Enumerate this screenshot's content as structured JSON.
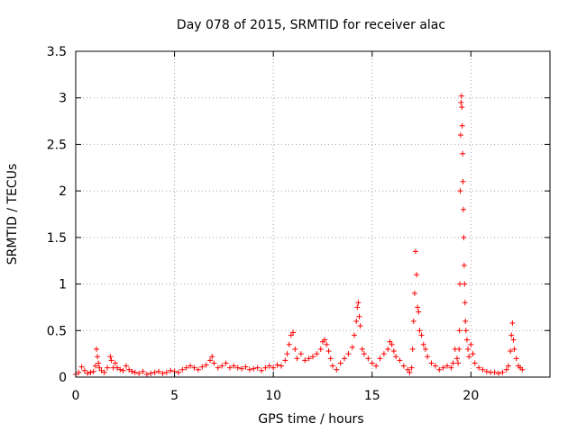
{
  "chart_data": {
    "type": "scatter",
    "title": "Day 078 of 2015, SRMTID for receiver alac",
    "xlabel": "GPS time / hours",
    "ylabel": "SRMTID / TECUs",
    "xlim": [
      0,
      24
    ],
    "ylim": [
      0,
      3.5
    ],
    "x_ticks": [
      0,
      5,
      10,
      15,
      20
    ],
    "x_tick_labels": [
      "0",
      "5",
      "10",
      "15",
      "20"
    ],
    "y_ticks": [
      0,
      0.5,
      1,
      1.5,
      2,
      2.5,
      3,
      3.5
    ],
    "y_tick_labels": [
      "0",
      "0.5",
      "1",
      "1.5",
      "2",
      "2.5",
      "3",
      "3.5"
    ],
    "grid": true,
    "marker": "+",
    "color": "#ff0000",
    "series": [
      {
        "name": "SRMTID",
        "x": [
          0.0,
          0.15,
          0.3,
          0.45,
          0.6,
          0.75,
          0.9,
          1.0,
          1.05,
          1.1,
          1.15,
          1.2,
          1.3,
          1.45,
          1.6,
          1.75,
          1.8,
          1.9,
          2.0,
          2.1,
          2.25,
          2.4,
          2.55,
          2.7,
          2.85,
          3.0,
          3.2,
          3.4,
          3.6,
          3.8,
          4.0,
          4.2,
          4.4,
          4.6,
          4.8,
          5.0,
          5.2,
          5.4,
          5.6,
          5.8,
          6.0,
          6.2,
          6.4,
          6.6,
          6.8,
          6.9,
          7.0,
          7.2,
          7.4,
          7.6,
          7.8,
          8.0,
          8.2,
          8.4,
          8.6,
          8.8,
          9.0,
          9.2,
          9.4,
          9.6,
          9.8,
          10.0,
          10.2,
          10.4,
          10.6,
          10.7,
          10.8,
          10.9,
          11.0,
          11.1,
          11.2,
          11.4,
          11.6,
          11.8,
          12.0,
          12.2,
          12.4,
          12.5,
          12.6,
          12.7,
          12.8,
          12.9,
          13.0,
          13.2,
          13.4,
          13.6,
          13.8,
          14.0,
          14.1,
          14.2,
          14.25,
          14.3,
          14.35,
          14.4,
          14.5,
          14.6,
          14.8,
          15.0,
          15.2,
          15.4,
          15.6,
          15.8,
          15.9,
          16.0,
          16.1,
          16.2,
          16.4,
          16.6,
          16.8,
          16.9,
          17.0,
          17.05,
          17.1,
          17.15,
          17.2,
          17.25,
          17.3,
          17.35,
          17.4,
          17.5,
          17.6,
          17.7,
          17.8,
          18.0,
          18.2,
          18.4,
          18.6,
          18.8,
          19.0,
          19.1,
          19.2,
          19.3,
          19.35,
          19.4,
          19.42,
          19.44,
          19.46,
          19.48,
          19.5,
          19.52,
          19.54,
          19.56,
          19.58,
          19.6,
          19.62,
          19.64,
          19.66,
          19.68,
          19.7,
          19.72,
          19.75,
          19.8,
          19.85,
          19.9,
          20.0,
          20.1,
          20.2,
          20.4,
          20.6,
          20.8,
          21.0,
          21.2,
          21.4,
          21.6,
          21.8,
          21.9,
          22.0,
          22.05,
          22.1,
          22.15,
          22.2,
          22.3,
          22.4,
          22.5,
          22.6
        ],
        "y": [
          0.03,
          0.05,
          0.11,
          0.07,
          0.04,
          0.05,
          0.06,
          0.12,
          0.3,
          0.22,
          0.15,
          0.1,
          0.07,
          0.05,
          0.1,
          0.22,
          0.18,
          0.1,
          0.15,
          0.1,
          0.08,
          0.07,
          0.12,
          0.08,
          0.06,
          0.05,
          0.04,
          0.06,
          0.03,
          0.04,
          0.05,
          0.06,
          0.04,
          0.05,
          0.07,
          0.06,
          0.05,
          0.08,
          0.1,
          0.12,
          0.1,
          0.08,
          0.11,
          0.13,
          0.18,
          0.22,
          0.15,
          0.1,
          0.12,
          0.15,
          0.1,
          0.12,
          0.1,
          0.09,
          0.11,
          0.08,
          0.09,
          0.1,
          0.07,
          0.1,
          0.12,
          0.1,
          0.13,
          0.12,
          0.18,
          0.25,
          0.35,
          0.45,
          0.48,
          0.3,
          0.2,
          0.25,
          0.18,
          0.2,
          0.22,
          0.25,
          0.3,
          0.38,
          0.4,
          0.35,
          0.28,
          0.2,
          0.12,
          0.08,
          0.15,
          0.2,
          0.25,
          0.32,
          0.45,
          0.6,
          0.75,
          0.8,
          0.65,
          0.55,
          0.3,
          0.25,
          0.2,
          0.15,
          0.12,
          0.2,
          0.25,
          0.3,
          0.38,
          0.35,
          0.28,
          0.22,
          0.18,
          0.12,
          0.08,
          0.05,
          0.1,
          0.3,
          0.6,
          0.9,
          1.35,
          1.1,
          0.75,
          0.7,
          0.5,
          0.45,
          0.35,
          0.3,
          0.22,
          0.15,
          0.12,
          0.08,
          0.1,
          0.12,
          0.1,
          0.15,
          0.3,
          0.2,
          0.15,
          0.3,
          0.5,
          1.0,
          2.0,
          2.6,
          2.95,
          3.02,
          2.9,
          2.7,
          2.4,
          2.1,
          1.8,
          1.5,
          1.2,
          1.0,
          0.8,
          0.6,
          0.5,
          0.4,
          0.3,
          0.22,
          0.35,
          0.25,
          0.15,
          0.1,
          0.08,
          0.06,
          0.05,
          0.05,
          0.04,
          0.05,
          0.08,
          0.12,
          0.28,
          0.45,
          0.58,
          0.4,
          0.3,
          0.2,
          0.12,
          0.1,
          0.08
        ]
      }
    ]
  }
}
